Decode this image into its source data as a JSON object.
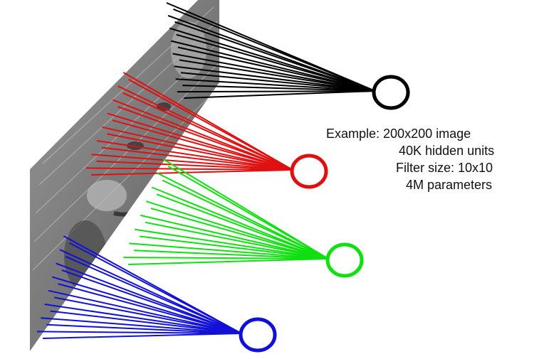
{
  "caption": {
    "lines": [
      "Example: 200x200 image",
      "40K hidden units",
      "Filter size: 10x10",
      "4M parameters"
    ]
  },
  "colors": {
    "black_unit": "#000000",
    "red_unit": "#e01010",
    "green_unit": "#10e010",
    "blue_unit": "#1010d8",
    "image_gray": "#8c8c8c"
  },
  "icons": {
    "image": "grayscale-portrait-photo",
    "units": "hollow-circle-neuron"
  }
}
